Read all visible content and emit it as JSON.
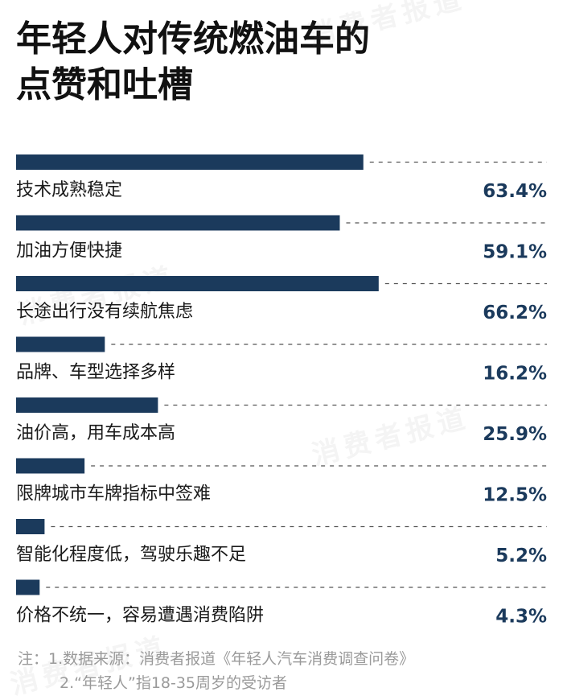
{
  "title_lines": [
    "年轻人对传统燃油车的",
    "点赞和吐槽"
  ],
  "watermark": "消费者报道",
  "colors": {
    "bar": "#1b3a5c",
    "dash": "#555555",
    "value": "#1b3a5c",
    "label": "#1a1a1a"
  },
  "chart_data": {
    "type": "bar",
    "orientation": "horizontal",
    "categories": [
      "技术成熟稳定",
      "加油方便快捷",
      "长途出行没有续航焦虑",
      "品牌、车型选择多样",
      "油价高，用车成本高",
      "限牌城市车牌指标中签难",
      "智能化程度低，驾驶乐趣不足",
      "价格不统一，容易遭遇消费陷阱"
    ],
    "values": [
      63.4,
      59.1,
      66.2,
      16.2,
      25.9,
      12.5,
      5.2,
      4.3
    ],
    "value_labels": [
      "63.4%",
      "59.1%",
      "66.2%",
      "16.2%",
      "25.9%",
      "12.5%",
      "5.2%",
      "4.3%"
    ],
    "unit": "%",
    "xlim": [
      0,
      100
    ],
    "title": "年轻人对传统燃油车的点赞和吐槽",
    "xlabel": "",
    "ylabel": "",
    "grid": false,
    "legend": false
  },
  "notes": [
    "注：1.数据来源：消费者报道《年轻人汽车消费调查问卷》",
    "2.“年轻人”指18-35周岁的受访者"
  ]
}
